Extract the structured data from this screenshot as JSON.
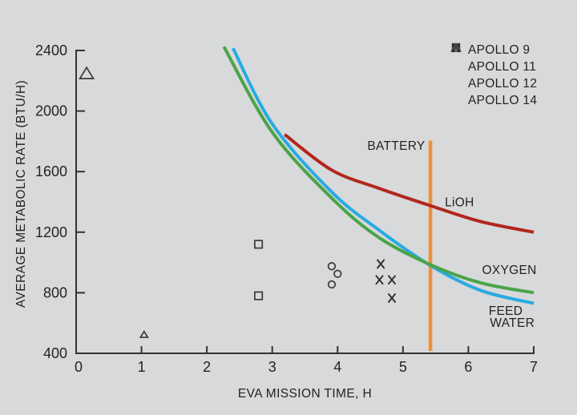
{
  "chart_data": {
    "type": "line",
    "title": "",
    "xlabel": "EVA MISSION  TIME, H",
    "ylabel": "AVERAGE METABOLIC RATE (BTU/H)",
    "xlim": [
      0,
      7
    ],
    "ylim": [
      400,
      2400
    ],
    "xticks": [
      "0",
      "1",
      "2",
      "3",
      "4",
      "5",
      "6",
      "7"
    ],
    "yticks": [
      "400",
      "800",
      "1200",
      "1600",
      "2000",
      "2400"
    ],
    "grid": false,
    "legend_position": "top-right",
    "series": [
      {
        "name": "BATTERY",
        "color": "#f28f33",
        "width": 4.5,
        "points": [
          [
            5.42,
            415
          ],
          [
            5.42,
            1805
          ]
        ]
      },
      {
        "name": "FEED WATER",
        "color": "#29aae3",
        "width": 4,
        "points": [
          [
            2.4,
            2415
          ],
          [
            3.0,
            1915
          ],
          [
            3.91,
            1465
          ],
          [
            4.63,
            1215
          ],
          [
            5.42,
            980
          ],
          [
            6.19,
            815
          ],
          [
            7.0,
            730
          ]
        ]
      },
      {
        "name": "OXYGEN",
        "color": "#4aa449",
        "width": 4,
        "points": [
          [
            2.26,
            2425
          ],
          [
            3.0,
            1860
          ],
          [
            3.91,
            1425
          ],
          [
            4.63,
            1165
          ],
          [
            5.42,
            985
          ],
          [
            6.19,
            865
          ],
          [
            7.0,
            800
          ]
        ]
      },
      {
        "name": "LiOH",
        "color": "#b2271d",
        "width": 4,
        "points": [
          [
            3.19,
            1845
          ],
          [
            3.91,
            1610
          ],
          [
            4.63,
            1490
          ],
          [
            5.42,
            1375
          ],
          [
            6.19,
            1270
          ],
          [
            7.0,
            1200
          ]
        ]
      }
    ],
    "scatter": [
      {
        "name": "APOLLO 9",
        "marker": "triangle",
        "points": [
          [
            0.16,
            2245
          ],
          [
            1.04,
            522
          ]
        ],
        "sizes": [
          17,
          9
        ]
      },
      {
        "name": "APOLLO 11",
        "marker": "square",
        "points": [
          [
            2.79,
            1120
          ],
          [
            2.79,
            780
          ]
        ]
      },
      {
        "name": "APOLLO 12",
        "marker": "circle",
        "points": [
          [
            3.91,
            975
          ],
          [
            4.0,
            925
          ],
          [
            3.91,
            855
          ]
        ]
      },
      {
        "name": "APOLLO 14",
        "marker": "x",
        "points": [
          [
            4.66,
            990
          ],
          [
            4.64,
            885
          ],
          [
            4.83,
            885
          ],
          [
            4.83,
            765
          ]
        ]
      }
    ],
    "annotations": [
      {
        "text": "BATTERY",
        "x": 5.34,
        "y": 1745,
        "anchor": "end"
      },
      {
        "text": "LiOH",
        "x": 5.64,
        "y": 1370,
        "anchor": "start"
      },
      {
        "text": "OXYGEN",
        "x": 6.21,
        "y": 925,
        "anchor": "start"
      },
      {
        "text": "FEED",
        "x": 6.31,
        "y": 655,
        "anchor": "start"
      },
      {
        "text": "WATER",
        "x": 6.33,
        "y": 575,
        "anchor": "start"
      }
    ],
    "axis_color": "#333333",
    "marker_color": "#3a3a3a",
    "background_color": "#d8d9da"
  }
}
